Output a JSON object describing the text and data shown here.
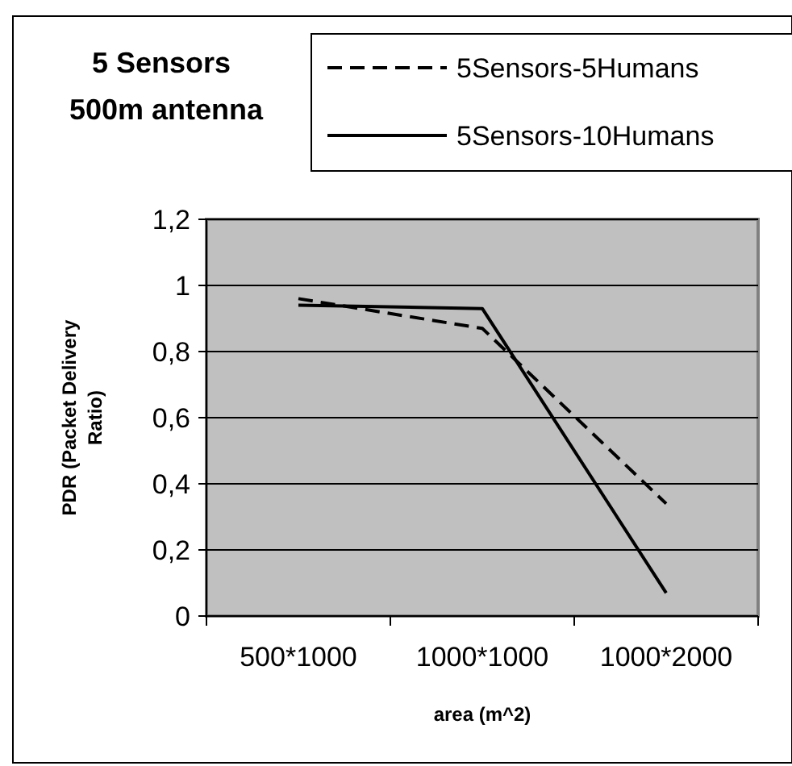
{
  "chart_data": {
    "type": "line",
    "title": "5 Sensors",
    "subtitle": "500m antenna",
    "xlabel": "area (m^2)",
    "ylabel": "PDR (Packet Delivery Ratio)",
    "categories": [
      "500*1000",
      "1000*1000",
      "1000*2000"
    ],
    "series": [
      {
        "name": "5Sensors-5Humans",
        "color": "#000000",
        "line_style": "dashed",
        "values": [
          0.96,
          0.87,
          0.34
        ]
      },
      {
        "name": "5Sensors-10Humans",
        "color": "#000000",
        "line_style": "solid",
        "values": [
          0.94,
          0.93,
          0.07
        ]
      }
    ],
    "ylim": [
      0,
      1.2
    ],
    "yticks": [
      0,
      {
        "value": 0.2,
        "label": "0,2"
      },
      {
        "value": 0.4,
        "label": "0,4"
      },
      {
        "value": 0.6,
        "label": "0,6"
      },
      {
        "value": 0.8,
        "label": "0,8"
      },
      1,
      {
        "value": 1.2,
        "label": "1,2"
      }
    ],
    "grid": "y",
    "legend": "top right",
    "marker": "none"
  }
}
